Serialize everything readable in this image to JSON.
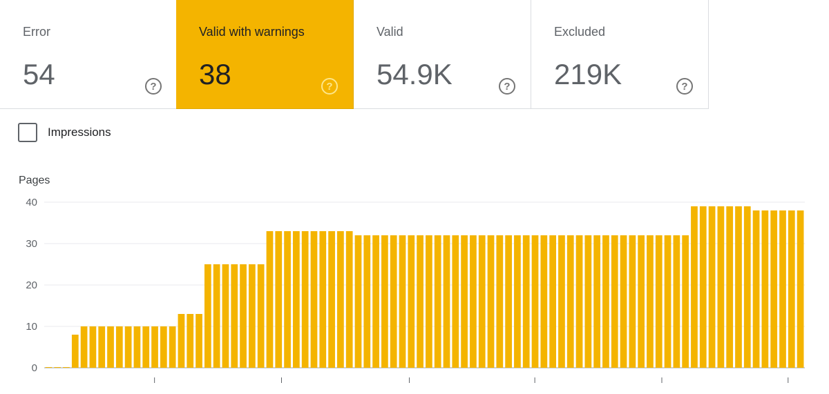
{
  "summary_cards": [
    {
      "label": "Error",
      "value": "54",
      "active": false,
      "help_icon": "help-circle-icon"
    },
    {
      "label": "Valid with warnings",
      "value": "38",
      "active": true,
      "help_icon": "help-circle-icon"
    },
    {
      "label": "Valid",
      "value": "54.9K",
      "active": false,
      "help_icon": "help-circle-icon"
    },
    {
      "label": "Excluded",
      "value": "219K",
      "active": false,
      "help_icon": "help-circle-icon"
    }
  ],
  "impressions_toggle": {
    "label": "Impressions",
    "checked": false
  },
  "chart_data": {
    "type": "bar",
    "ylabel": "Pages",
    "ylim": [
      0,
      40
    ],
    "yticks": [
      0,
      10,
      20,
      30,
      40
    ],
    "grid": true,
    "color": "#f4b400",
    "values": [
      0,
      0,
      0,
      8,
      10,
      10,
      10,
      10,
      10,
      10,
      10,
      10,
      10,
      10,
      10,
      13,
      13,
      13,
      25,
      25,
      25,
      25,
      25,
      25,
      25,
      33,
      33,
      33,
      33,
      33,
      33,
      33,
      33,
      33,
      33,
      32,
      32,
      32,
      32,
      32,
      32,
      32,
      32,
      32,
      32,
      32,
      32,
      32,
      32,
      32,
      32,
      32,
      32,
      32,
      32,
      32,
      32,
      32,
      32,
      32,
      32,
      32,
      32,
      32,
      32,
      32,
      32,
      32,
      32,
      32,
      32,
      32,
      32,
      39,
      39,
      39,
      39,
      39,
      39,
      39,
      38,
      38,
      38,
      38,
      38,
      38
    ]
  },
  "colors": {
    "accent": "#f4b400",
    "border": "#dadce0",
    "text": "#5f6368"
  }
}
